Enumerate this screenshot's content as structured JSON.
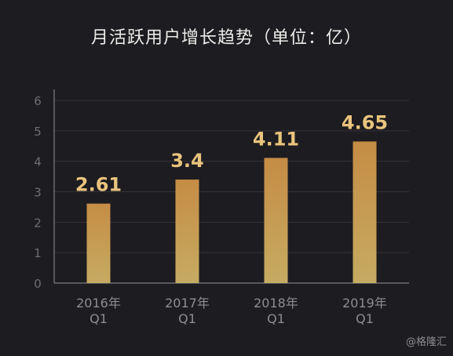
{
  "title": "月活跃用户增长趋势（单位：亿）",
  "watermark": "@格隆汇",
  "colors": {
    "background": "#1d1c20",
    "bar_top": "#c58c45",
    "bar_bottom": "#c6ab62",
    "value_label": "#e9c47d",
    "grid": "#343338",
    "axis": "#6d6c70",
    "tick_label": "#6e6d71",
    "category_label": "#8e8d91"
  },
  "chart_data": {
    "type": "bar",
    "title": "月活跃用户增长趋势（单位：亿）",
    "categories": [
      [
        "2016年",
        "Q1"
      ],
      [
        "2017年",
        "Q1"
      ],
      [
        "2018年",
        "Q1"
      ],
      [
        "2019年",
        "Q1"
      ]
    ],
    "values": [
      2.61,
      3.4,
      4.11,
      4.65
    ],
    "value_labels": [
      "2.61",
      "3.4",
      "4.11",
      "4.65"
    ],
    "yticks": [
      "0",
      "1",
      "2",
      "3",
      "4",
      "5",
      "6"
    ],
    "ylim": [
      0,
      6
    ],
    "xlabel": "",
    "ylabel": "",
    "grid": true,
    "legend": false
  }
}
